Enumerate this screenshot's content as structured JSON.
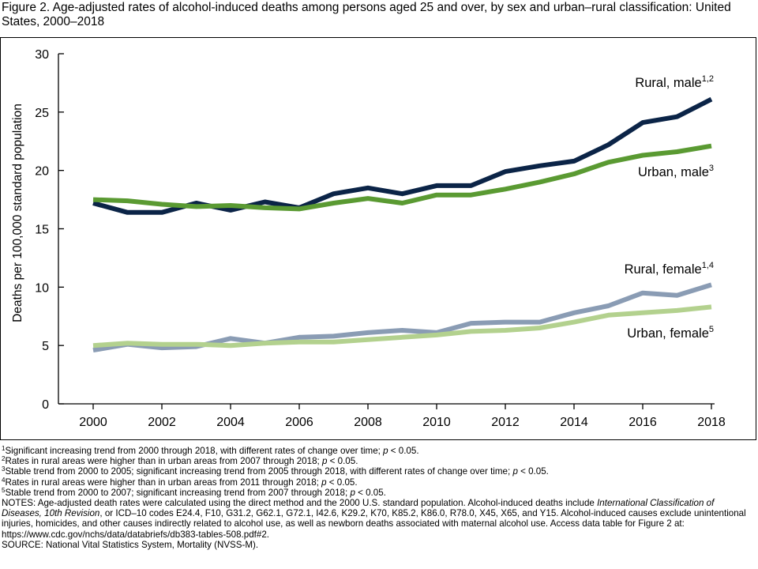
{
  "figure": {
    "title": "Figure 2. Age-adjusted rates of alcohol-induced deaths among persons aged 25 and over, by sex and urban–rural classification: United States, 2000–2018"
  },
  "chart_data": {
    "type": "line",
    "title": "",
    "xlabel": "",
    "ylabel": "Deaths per 100,000 standard population",
    "xlim": [
      2000,
      2018
    ],
    "ylim": [
      0,
      30
    ],
    "xticks": [
      "2000",
      "2002",
      "2004",
      "2006",
      "2008",
      "2010",
      "2012",
      "2014",
      "2016",
      "2018"
    ],
    "yticks": [
      "0",
      "5",
      "10",
      "15",
      "20",
      "25",
      "30"
    ],
    "grid": false,
    "legend": "direct labels at right end of each line",
    "x": [
      2000,
      2001,
      2002,
      2003,
      2004,
      2005,
      2006,
      2007,
      2008,
      2009,
      2010,
      2011,
      2012,
      2013,
      2014,
      2015,
      2016,
      2017,
      2018
    ],
    "series": [
      {
        "name": "Rural, male",
        "sup": "1,2",
        "color": "#0b2447",
        "values": [
          17.2,
          16.4,
          16.4,
          17.2,
          16.6,
          17.3,
          16.8,
          18.0,
          18.5,
          18.0,
          18.7,
          18.7,
          19.9,
          20.4,
          20.8,
          22.2,
          24.1,
          24.6,
          26.1
        ]
      },
      {
        "name": "Urban, male",
        "sup": "3",
        "color": "#5a9a32",
        "values": [
          17.5,
          17.4,
          17.1,
          16.9,
          17.0,
          16.8,
          16.7,
          17.2,
          17.6,
          17.2,
          17.9,
          17.9,
          18.4,
          19.0,
          19.7,
          20.7,
          21.3,
          21.6,
          22.1
        ]
      },
      {
        "name": "Rural, female",
        "sup": "1,4",
        "color": "#8a9cb4",
        "values": [
          4.6,
          5.1,
          4.8,
          4.9,
          5.6,
          5.2,
          5.7,
          5.8,
          6.1,
          6.3,
          6.1,
          6.9,
          7.0,
          7.0,
          7.8,
          8.4,
          9.5,
          9.3,
          10.2
        ]
      },
      {
        "name": "Urban, female",
        "sup": "5",
        "color": "#b3d18e",
        "values": [
          5.0,
          5.2,
          5.1,
          5.1,
          5.0,
          5.2,
          5.3,
          5.3,
          5.5,
          5.7,
          5.9,
          6.2,
          6.3,
          6.5,
          7.0,
          7.6,
          7.8,
          8.0,
          8.3
        ]
      }
    ]
  },
  "footnotes": [
    {
      "sup": "1",
      "text": "Significant increasing trend from 2000 through 2018, with different rates of change over time; ",
      "p": "p",
      "tail": " < 0.05."
    },
    {
      "sup": "2",
      "text": "Rates in rural areas were higher than in urban areas from 2007 through 2018; ",
      "p": "p",
      "tail": " < 0.05."
    },
    {
      "sup": "3",
      "text": "Stable trend from 2000 to 2005; significant increasing trend from 2005 through 2018, with different rates of change over time; ",
      "p": "p",
      "tail": " < 0.05."
    },
    {
      "sup": "4",
      "text": "Rates in rural areas were higher than in urban areas from 2011 through 2018; ",
      "p": "p",
      "tail": " < 0.05."
    },
    {
      "sup": "5",
      "text": "Stable trend from 2000 to 2007; significant increasing trend from 2007 through 2018; ",
      "p": "p",
      "tail": " < 0.05."
    }
  ],
  "notes": {
    "part1": "NOTES: Age-adjusted death rates were calculated using the direct method and the 2000 U.S. standard population. Alcohol-induced deaths include ",
    "italic": "International Classification of Diseases, 10th Revision",
    "part2": ", or ICD–10 codes E24.4, F10, G31.2, G62.1, G72.1, I42.6, K29.2, K70, K85.2, K86.0, R78.0, X45, X65, and Y15. Alcohol-induced causes exclude unintentional injuries, homicides, and other causes indirectly related to alcohol use, as well as newborn deaths associated with maternal alcohol use. Access data table for Figure 2 at: https://www.cdc.gov/nchs/data/databriefs/db383-tables-508.pdf#2."
  },
  "source": "SOURCE: National Vital Statistics System, Mortality (NVSS-M)."
}
